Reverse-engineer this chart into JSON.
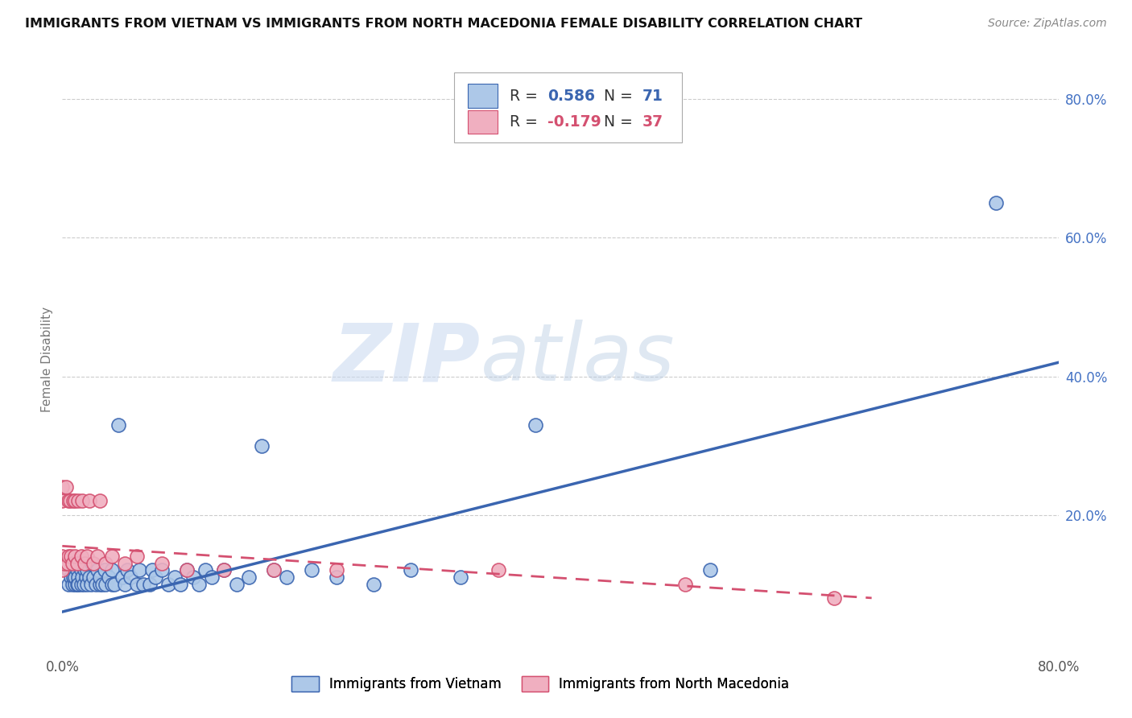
{
  "title": "IMMIGRANTS FROM VIETNAM VS IMMIGRANTS FROM NORTH MACEDONIA FEMALE DISABILITY CORRELATION CHART",
  "source": "Source: ZipAtlas.com",
  "ylabel": "Female Disability",
  "xlim": [
    0.0,
    0.8
  ],
  "ylim": [
    0.0,
    0.85
  ],
  "ytick_positions": [
    0.2,
    0.4,
    0.6,
    0.8
  ],
  "ytick_labels": [
    "20.0%",
    "40.0%",
    "60.0%",
    "80.0%"
  ],
  "R_vietnam": 0.586,
  "N_vietnam": 71,
  "R_macedonia": -0.179,
  "N_macedonia": 37,
  "legend_label_1": "Immigrants from Vietnam",
  "legend_label_2": "Immigrants from North Macedonia",
  "color_vietnam": "#adc8e8",
  "color_vietnam_line": "#3a65b0",
  "color_macedonia": "#f0afc0",
  "color_macedonia_line": "#d45070",
  "watermark_zip": "ZIP",
  "watermark_atlas": "atlas",
  "vietnam_scatter_x": [
    0.005,
    0.005,
    0.007,
    0.008,
    0.008,
    0.009,
    0.01,
    0.01,
    0.01,
    0.012,
    0.012,
    0.013,
    0.013,
    0.014,
    0.015,
    0.015,
    0.016,
    0.017,
    0.018,
    0.019,
    0.02,
    0.02,
    0.022,
    0.023,
    0.024,
    0.025,
    0.027,
    0.028,
    0.03,
    0.03,
    0.032,
    0.034,
    0.035,
    0.037,
    0.04,
    0.04,
    0.042,
    0.045,
    0.048,
    0.05,
    0.052,
    0.055,
    0.06,
    0.062,
    0.065,
    0.07,
    0.072,
    0.075,
    0.08,
    0.085,
    0.09,
    0.095,
    0.1,
    0.105,
    0.11,
    0.115,
    0.12,
    0.13,
    0.14,
    0.15,
    0.16,
    0.17,
    0.18,
    0.2,
    0.22,
    0.25,
    0.28,
    0.32,
    0.38,
    0.52,
    0.75
  ],
  "vietnam_scatter_y": [
    0.1,
    0.12,
    0.11,
    0.1,
    0.13,
    0.11,
    0.1,
    0.12,
    0.11,
    0.1,
    0.12,
    0.11,
    0.1,
    0.13,
    0.1,
    0.12,
    0.11,
    0.1,
    0.12,
    0.11,
    0.1,
    0.12,
    0.11,
    0.1,
    0.13,
    0.11,
    0.1,
    0.12,
    0.1,
    0.11,
    0.1,
    0.12,
    0.1,
    0.11,
    0.1,
    0.12,
    0.1,
    0.33,
    0.11,
    0.1,
    0.12,
    0.11,
    0.1,
    0.12,
    0.1,
    0.1,
    0.12,
    0.11,
    0.12,
    0.1,
    0.11,
    0.1,
    0.12,
    0.11,
    0.1,
    0.12,
    0.11,
    0.12,
    0.1,
    0.11,
    0.3,
    0.12,
    0.11,
    0.12,
    0.11,
    0.1,
    0.12,
    0.11,
    0.33,
    0.12,
    0.65
  ],
  "macedonia_scatter_x": [
    0.0,
    0.0,
    0.0,
    0.0,
    0.002,
    0.003,
    0.004,
    0.005,
    0.005,
    0.006,
    0.007,
    0.008,
    0.009,
    0.01,
    0.01,
    0.012,
    0.013,
    0.015,
    0.016,
    0.018,
    0.02,
    0.022,
    0.025,
    0.028,
    0.03,
    0.035,
    0.04,
    0.05,
    0.06,
    0.08,
    0.1,
    0.13,
    0.17,
    0.22,
    0.35,
    0.5,
    0.62
  ],
  "macedonia_scatter_y": [
    0.12,
    0.14,
    0.22,
    0.24,
    0.13,
    0.24,
    0.13,
    0.14,
    0.22,
    0.22,
    0.14,
    0.13,
    0.22,
    0.14,
    0.22,
    0.13,
    0.22,
    0.14,
    0.22,
    0.13,
    0.14,
    0.22,
    0.13,
    0.14,
    0.22,
    0.13,
    0.14,
    0.13,
    0.14,
    0.13,
    0.12,
    0.12,
    0.12,
    0.12,
    0.12,
    0.1,
    0.08
  ],
  "vietnam_line_x": [
    0.0,
    0.8
  ],
  "vietnam_line_y": [
    0.06,
    0.42
  ],
  "macedonia_line_x": [
    0.0,
    0.65
  ],
  "macedonia_line_y": [
    0.155,
    0.08
  ]
}
